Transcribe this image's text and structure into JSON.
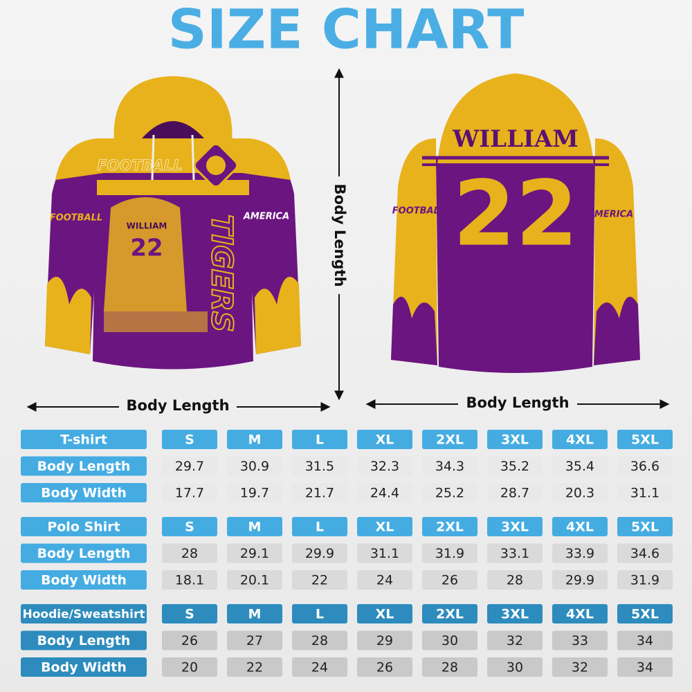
{
  "title": "SIZE CHART",
  "labels": {
    "vertical": "Body Length",
    "front": "Body Length",
    "back": "Body Length"
  },
  "front_hoodie": {
    "chest": "FOOTBALL",
    "name": "WILLIAM",
    "number": "22",
    "side": "TIGERS",
    "left_sleeve": "FOOTBALL",
    "right_sleeve": "AMERICA"
  },
  "back_hoodie": {
    "name": "WILLIAM",
    "number": "22",
    "left_sleeve": "FOOTBALL",
    "right_sleeve": "AMERICA"
  },
  "tables": [
    {
      "header": [
        "T-shirt",
        "S",
        "M",
        "L",
        "XL",
        "2XL",
        "3XL",
        "4XL",
        "5XL"
      ],
      "rows": [
        [
          "Body Length",
          29.7,
          30.9,
          31.5,
          32.3,
          34.3,
          35.2,
          35.4,
          36.6
        ],
        [
          "Body Width",
          17.7,
          19.7,
          21.7,
          24.4,
          25.2,
          28.7,
          20.3,
          31.1
        ]
      ]
    },
    {
      "header": [
        "Polo Shirt",
        "S",
        "M",
        "L",
        "XL",
        "2XL",
        "3XL",
        "4XL",
        "5XL"
      ],
      "rows": [
        [
          "Body Length",
          28,
          29.1,
          29.9,
          31.1,
          31.9,
          33.1,
          33.9,
          34.6
        ],
        [
          "Body Width",
          18.1,
          20.1,
          22,
          24,
          26,
          28,
          29.9,
          31.9
        ]
      ]
    },
    {
      "header": [
        "Hoodie/Sweatshirt",
        "S",
        "M",
        "L",
        "XL",
        "2XL",
        "3XL",
        "4XL",
        "5XL"
      ],
      "rows": [
        [
          "Body Length",
          26,
          27,
          28,
          29,
          30,
          32,
          33,
          34
        ],
        [
          "Body Width",
          20,
          22,
          24,
          26,
          28,
          30,
          32,
          34
        ]
      ]
    }
  ]
}
